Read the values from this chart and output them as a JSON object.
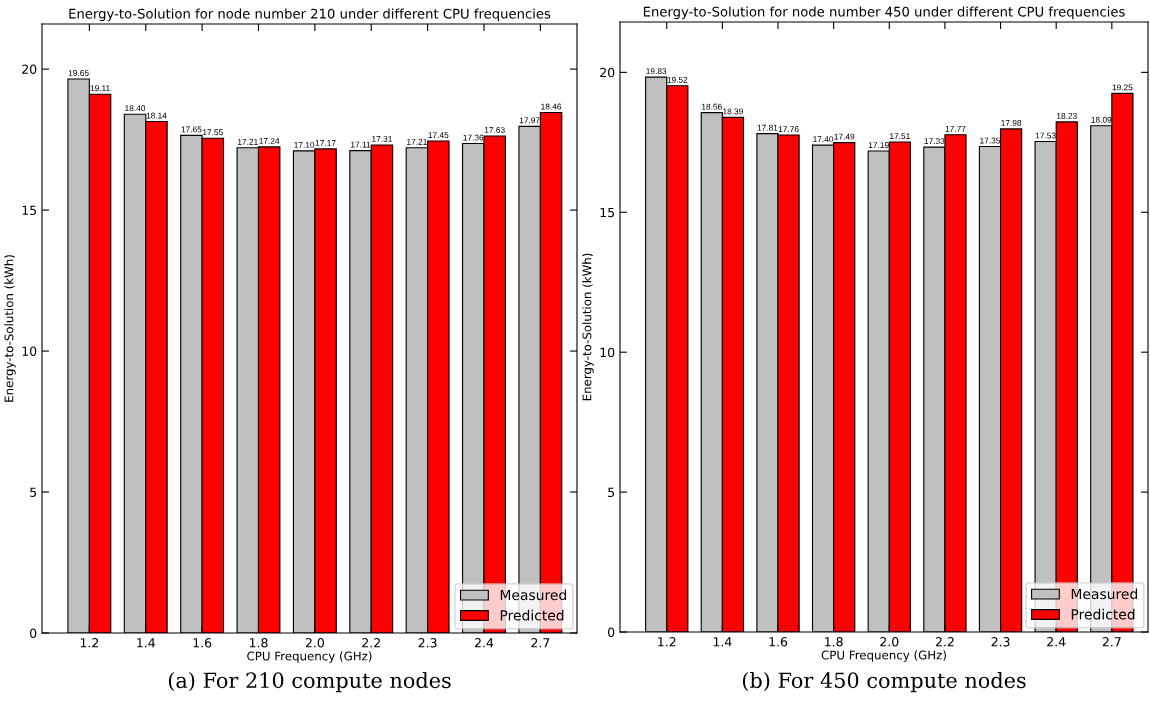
{
  "chart_data": [
    {
      "type": "bar",
      "title": "Energy-to-Solution for node number 210 under different CPU frequencies",
      "xlabel": "CPU Frequency (GHz)",
      "ylabel": "Energy-to-Solution (kWh)",
      "categories": [
        "1.2",
        "1.4",
        "1.6",
        "1.8",
        "2.0",
        "2.2",
        "2.3",
        "2.4",
        "2.7"
      ],
      "series": [
        {
          "name": "Measured",
          "color": "#c0c0c0",
          "values": [
            19.65,
            18.4,
            17.65,
            17.21,
            17.1,
            17.11,
            17.21,
            17.36,
            17.97
          ],
          "value_labels": [
            "19.65",
            "18.40",
            "17.65",
            "17.21",
            "17.10",
            "17.11",
            "17.21",
            "17.36",
            "17.97"
          ]
        },
        {
          "name": "Predicted",
          "color": "#ff0000",
          "values": [
            19.11,
            18.14,
            17.55,
            17.24,
            17.17,
            17.31,
            17.45,
            17.63,
            18.46
          ],
          "value_labels": [
            "19.11",
            "18.14",
            "17.55",
            "17.24",
            "17.17",
            "17.31",
            "17.45",
            "17.63",
            "18.46"
          ]
        }
      ],
      "ylim": [
        0,
        21.6
      ],
      "yticks": [
        0,
        5,
        10,
        15,
        20
      ],
      "grid": false,
      "legend": "bottom right",
      "annotations": [
        "(a) For 210 compute nodes"
      ]
    },
    {
      "type": "bar",
      "title": "Energy-to-Solution for node number 450 under different CPU frequencies",
      "xlabel": "CPU Frequency (GHz)",
      "ylabel": "Energy-to-Solution (kWh)",
      "categories": [
        "1.2",
        "1.4",
        "1.6",
        "1.8",
        "2.0",
        "2.2",
        "2.3",
        "2.4",
        "2.7"
      ],
      "series": [
        {
          "name": "Measured",
          "color": "#c0c0c0",
          "values": [
            19.83,
            18.56,
            17.81,
            17.4,
            17.19,
            17.33,
            17.35,
            17.53,
            18.09
          ],
          "value_labels": [
            "19.83",
            "18.56",
            "17.81",
            "17.40",
            "17.19",
            "17.33",
            "17.35",
            "17.53",
            "18.09"
          ]
        },
        {
          "name": "Predicted",
          "color": "#ff0000",
          "values": [
            19.52,
            18.39,
            17.76,
            17.49,
            17.51,
            17.77,
            17.98,
            18.23,
            19.25
          ],
          "value_labels": [
            "19.52",
            "18.39",
            "17.76",
            "17.49",
            "17.51",
            "17.77",
            "17.98",
            "18.23",
            "19.25"
          ]
        }
      ],
      "ylim": [
        0,
        21.8
      ],
      "yticks": [
        0,
        5,
        10,
        15,
        20
      ],
      "grid": false,
      "legend": "bottom right",
      "annotations": [
        "(b) For 450 compute nodes"
      ]
    }
  ]
}
